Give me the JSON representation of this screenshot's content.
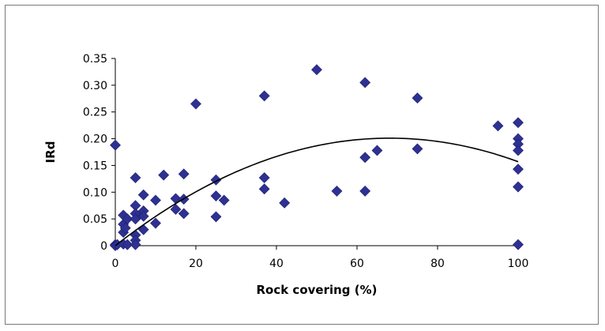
{
  "chart_data": {
    "type": "scatter",
    "title": "",
    "xlabel": "Rock covering (%)",
    "ylabel": "IRd",
    "xlim": [
      0,
      100
    ],
    "ylim": [
      0,
      0.35
    ],
    "x_ticks": [
      "0",
      "20",
      "40",
      "60",
      "80",
      "100"
    ],
    "y_ticks": [
      "0",
      "0.05",
      "0.10",
      "0.15",
      "0.20",
      "0.25",
      "0.30",
      "0.35"
    ],
    "grid": false,
    "legend": "none",
    "marker_color": "#2E3192",
    "trendline_color": "#000000",
    "series": [
      {
        "points": [
          [
            0,
            0.188
          ],
          [
            0,
            0.002
          ],
          [
            0,
            0.001
          ],
          [
            0,
            0.0
          ],
          [
            0.5,
            0.002
          ],
          [
            2,
            0.003
          ],
          [
            2,
            0.025
          ],
          [
            2,
            0.04
          ],
          [
            2,
            0.057
          ],
          [
            2.5,
            0.033
          ],
          [
            3,
            0.05
          ],
          [
            3,
            0.002
          ],
          [
            5,
            0.127
          ],
          [
            5,
            0.075
          ],
          [
            5,
            0.06
          ],
          [
            5,
            0.05
          ],
          [
            5,
            0.02
          ],
          [
            5,
            0.01
          ],
          [
            5,
            0.002
          ],
          [
            7,
            0.095
          ],
          [
            7,
            0.065
          ],
          [
            7,
            0.055
          ],
          [
            7,
            0.03
          ],
          [
            10,
            0.085
          ],
          [
            10,
            0.042
          ],
          [
            12,
            0.132
          ],
          [
            15,
            0.088
          ],
          [
            15,
            0.068
          ],
          [
            17,
            0.134
          ],
          [
            17,
            0.087
          ],
          [
            17,
            0.06
          ],
          [
            20,
            0.265
          ],
          [
            25,
            0.123
          ],
          [
            25,
            0.093
          ],
          [
            25,
            0.054
          ],
          [
            27,
            0.085
          ],
          [
            37,
            0.28
          ],
          [
            37,
            0.127
          ],
          [
            37,
            0.106
          ],
          [
            42,
            0.08
          ],
          [
            50,
            0.329
          ],
          [
            55,
            0.102
          ],
          [
            62,
            0.305
          ],
          [
            62,
            0.165
          ],
          [
            62,
            0.102
          ],
          [
            65,
            0.178
          ],
          [
            75,
            0.276
          ],
          [
            75,
            0.181
          ],
          [
            95,
            0.224
          ],
          [
            100,
            0.23
          ],
          [
            100,
            0.2
          ],
          [
            100,
            0.19
          ],
          [
            100,
            0.178
          ],
          [
            100,
            0.143
          ],
          [
            100,
            0.11
          ],
          [
            100,
            0.002
          ]
        ]
      }
    ],
    "trendline": {
      "kind": "polynomial-2",
      "coefficients": {
        "a": -4.33e-05,
        "b": 0.0059,
        "c": 0.0
      }
    }
  }
}
